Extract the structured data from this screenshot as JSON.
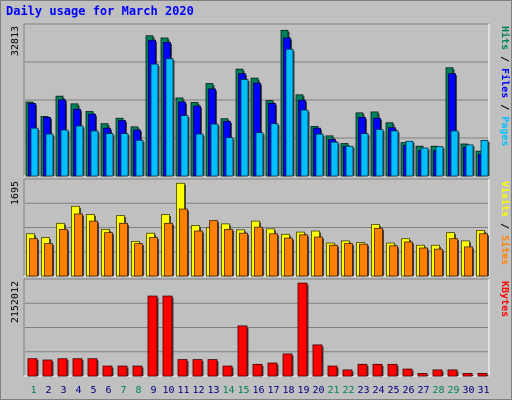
{
  "title": "Daily usage for March 2020",
  "colors": {
    "hits": "#00805c",
    "files": "#0000ff",
    "pages": "#00c0ff",
    "visits": "#ffff00",
    "sites": "#ff8000",
    "kbytes": "#ff0000",
    "weekend_label": "#00805c",
    "weekday_label": "#000080",
    "panel_bg": "#c0c0c0"
  },
  "chart_data": [
    {
      "type": "bar",
      "name": "hits-files-pages",
      "ylabel_parts": [
        "Pages",
        "Files",
        "Hits"
      ],
      "ylabel_separator": " / ",
      "ymax_label": "32813",
      "ylim": [
        0,
        32813
      ],
      "categories": [
        "1",
        "2",
        "3",
        "4",
        "5",
        "6",
        "7",
        "8",
        "9",
        "10",
        "11",
        "12",
        "13",
        "14",
        "15",
        "16",
        "17",
        "18",
        "19",
        "20",
        "21",
        "22",
        "23",
        "24",
        "25",
        "26",
        "27",
        "28",
        "29",
        "30",
        "31"
      ],
      "series": [
        {
          "name": "Hits",
          "values": [
            16400,
            13200,
            17700,
            16000,
            14300,
            11600,
            12800,
            10900,
            31100,
            30600,
            17300,
            16300,
            20500,
            12700,
            23700,
            21700,
            16700,
            32300,
            18000,
            11000,
            8900,
            7200,
            14000,
            14200,
            11800,
            7400,
            6600,
            6600,
            24000,
            7100,
            5500
          ]
        },
        {
          "name": "Files",
          "values": [
            16100,
            13000,
            16900,
            14800,
            13700,
            10600,
            12300,
            10200,
            30100,
            29600,
            16400,
            15500,
            19300,
            12100,
            22700,
            20600,
            16100,
            30600,
            16800,
            10600,
            8100,
            6600,
            13000,
            12800,
            10700,
            6800,
            5600,
            5600,
            22700,
            6400,
            4800
          ]
        },
        {
          "name": "Pages",
          "values": [
            10600,
            9300,
            10200,
            11100,
            10000,
            9400,
            9400,
            7900,
            24800,
            26000,
            13400,
            9300,
            11500,
            8500,
            21400,
            9600,
            11600,
            28100,
            14600,
            9300,
            7500,
            6600,
            9400,
            10300,
            10000,
            7700,
            6200,
            6500,
            10000,
            6900,
            7900
          ]
        }
      ]
    },
    {
      "type": "bar",
      "name": "visits-sites",
      "ylabel_parts": [
        "Sites",
        "Visits"
      ],
      "ylabel_separator": " / ",
      "ymax_label": "1695",
      "ylim": [
        0,
        1695
      ],
      "categories": [
        "1",
        "2",
        "3",
        "4",
        "5",
        "6",
        "7",
        "8",
        "9",
        "10",
        "11",
        "12",
        "13",
        "14",
        "15",
        "16",
        "17",
        "18",
        "19",
        "20",
        "21",
        "22",
        "23",
        "24",
        "25",
        "26",
        "27",
        "28",
        "29",
        "30",
        "31"
      ],
      "series": [
        {
          "name": "Visits",
          "values": [
            770,
            700,
            960,
            1270,
            1120,
            850,
            1100,
            630,
            780,
            1120,
            1690,
            920,
            880,
            950,
            840,
            1000,
            860,
            760,
            800,
            820,
            600,
            640,
            610,
            940,
            600,
            680,
            560,
            560,
            790,
            640,
            830
          ]
        },
        {
          "name": "Sites",
          "values": [
            680,
            590,
            850,
            1130,
            1000,
            790,
            960,
            590,
            700,
            960,
            1220,
            820,
            1010,
            850,
            780,
            890,
            770,
            690,
            750,
            710,
            560,
            590,
            580,
            870,
            550,
            620,
            510,
            490,
            680,
            530,
            770
          ]
        }
      ]
    },
    {
      "type": "bar",
      "name": "kbytes",
      "ylabel_parts": [
        "KBytes"
      ],
      "ylabel_separator": "",
      "ymax_label": "2152012",
      "ylim": [
        0,
        2152012
      ],
      "categories": [
        "1",
        "2",
        "3",
        "4",
        "5",
        "6",
        "7",
        "8",
        "9",
        "10",
        "11",
        "12",
        "13",
        "14",
        "15",
        "16",
        "17",
        "18",
        "19",
        "20",
        "21",
        "22",
        "23",
        "24",
        "25",
        "26",
        "27",
        "28",
        "29",
        "30",
        "31"
      ],
      "series": [
        {
          "name": "KBytes",
          "values": [
            400000,
            370000,
            400000,
            400000,
            400000,
            230000,
            230000,
            230000,
            1850000,
            1850000,
            380000,
            380000,
            380000,
            230000,
            1160000,
            270000,
            300000,
            510000,
            2150000,
            720000,
            230000,
            140000,
            270000,
            270000,
            270000,
            160000,
            60000,
            140000,
            140000,
            60000,
            60000
          ]
        }
      ]
    }
  ],
  "day_labels": [
    {
      "day": "1",
      "weekend": true
    },
    {
      "day": "2",
      "weekend": false
    },
    {
      "day": "3",
      "weekend": false
    },
    {
      "day": "4",
      "weekend": false
    },
    {
      "day": "5",
      "weekend": false
    },
    {
      "day": "6",
      "weekend": false
    },
    {
      "day": "7",
      "weekend": true
    },
    {
      "day": "8",
      "weekend": true
    },
    {
      "day": "9",
      "weekend": false
    },
    {
      "day": "10",
      "weekend": false
    },
    {
      "day": "11",
      "weekend": false
    },
    {
      "day": "12",
      "weekend": false
    },
    {
      "day": "13",
      "weekend": false
    },
    {
      "day": "14",
      "weekend": true
    },
    {
      "day": "15",
      "weekend": true
    },
    {
      "day": "16",
      "weekend": false
    },
    {
      "day": "17",
      "weekend": false
    },
    {
      "day": "18",
      "weekend": false
    },
    {
      "day": "19",
      "weekend": false
    },
    {
      "day": "20",
      "weekend": false
    },
    {
      "day": "21",
      "weekend": true
    },
    {
      "day": "22",
      "weekend": true
    },
    {
      "day": "23",
      "weekend": false
    },
    {
      "day": "24",
      "weekend": false
    },
    {
      "day": "25",
      "weekend": false
    },
    {
      "day": "26",
      "weekend": false
    },
    {
      "day": "27",
      "weekend": false
    },
    {
      "day": "28",
      "weekend": true
    },
    {
      "day": "29",
      "weekend": true
    },
    {
      "day": "30",
      "weekend": false
    },
    {
      "day": "31",
      "weekend": false
    }
  ]
}
